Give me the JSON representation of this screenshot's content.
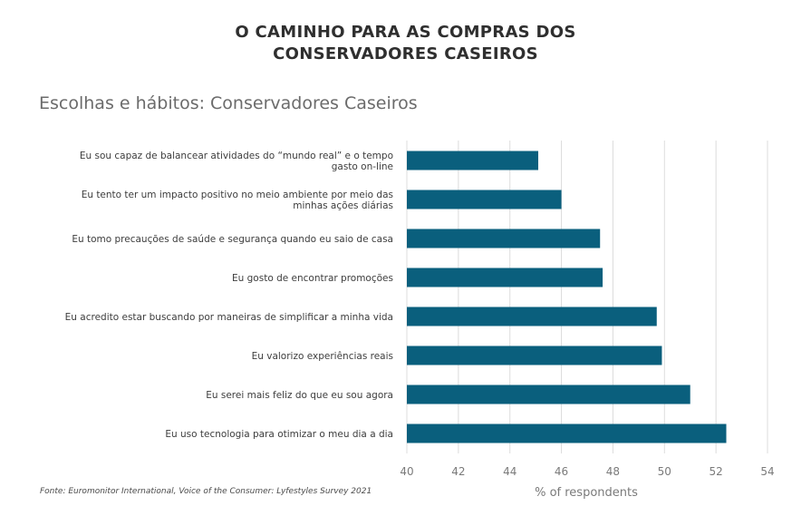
{
  "header": {
    "title_line1": "O CAMINHO PARA AS COMPRAS DOS",
    "title_line2": "CONSERVADORES CASEIROS",
    "subtitle": "Escolhas e hábitos: Conservadores Caseiros"
  },
  "footer": {
    "source": "Fonte: Euromonitor International, Voice of the Consumer: Lyfestyles Survey 2021"
  },
  "chart_data": {
    "type": "bar",
    "orientation": "horizontal",
    "categories": [
      [
        "Eu sou capaz de balancear atividades do “mundo real” e o tempo",
        "gasto on-line"
      ],
      [
        "Eu tento ter um impacto positivo no meio ambiente por meio das",
        "minhas ações diárias"
      ],
      [
        "Eu tomo precauções de saúde e segurança quando eu saio de casa"
      ],
      [
        "Eu gosto de encontrar promoções"
      ],
      [
        "Eu acredito estar buscando por maneiras de simplificar a minha vida"
      ],
      [
        "Eu valorizo experiências reais"
      ],
      [
        "Eu serei mais feliz do que eu sou agora"
      ],
      [
        "Eu uso tecnologia para otimizar o meu dia a dia"
      ]
    ],
    "values": [
      45.1,
      46.0,
      47.5,
      47.6,
      49.7,
      49.9,
      51.0,
      52.4
    ],
    "xlabel": "% of respondents",
    "xlim": [
      40,
      54
    ],
    "xticks": [
      40,
      42,
      44,
      46,
      48,
      50,
      52,
      54
    ],
    "grid": true,
    "bar_color": "#0a5f7d",
    "grid_color": "#dcdcdc"
  }
}
